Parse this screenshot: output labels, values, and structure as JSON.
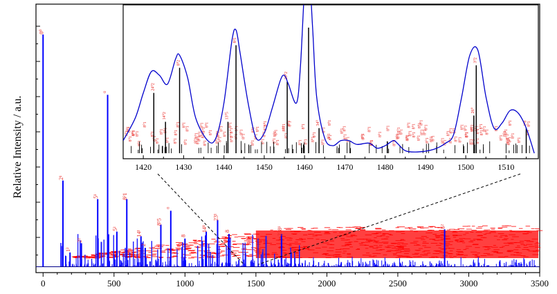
{
  "chart_data": [
    {
      "type": "bar",
      "name": "main-spectrum",
      "ylabel": "Relative Intensity / a.u.",
      "xlabel": "",
      "xlim": [
        -50,
        3500
      ],
      "ylim": [
        0,
        1.05
      ],
      "xticks": [
        0,
        500,
        1000,
        1500,
        2000,
        2500,
        3000,
        3500
      ],
      "experimental_color": "#0000ff",
      "assignment_color": "#ff0000",
      "stick_color": "#1a1aff",
      "peaks": [
        {
          "x": 0,
          "y": 1.0,
          "label": "0⁰"
        },
        {
          "x": 140,
          "y": 0.37,
          "label": "2¹"
        },
        {
          "x": 190,
          "y": 0.06,
          "label": "1²"
        },
        {
          "x": 270,
          "y": 0.1,
          "label": "2²"
        },
        {
          "x": 385,
          "y": 0.29,
          "label": "5¹"
        },
        {
          "x": 455,
          "y": 0.74,
          "label": "⁰"
        },
        {
          "x": 520,
          "y": 0.15,
          "label": "5²"
        },
        {
          "x": 590,
          "y": 0.29,
          "label": "8²1"
        },
        {
          "x": 690,
          "y": 0.13,
          "label": "14¹"
        },
        {
          "x": 720,
          "y": 0.08,
          "label": "2"
        },
        {
          "x": 830,
          "y": 0.18,
          "label": "8⁵5"
        },
        {
          "x": 900,
          "y": 0.24,
          "label": "⁰"
        },
        {
          "x": 1000,
          "y": 0.12,
          "label": "8"
        },
        {
          "x": 1150,
          "y": 0.15,
          "label": "14⁸"
        },
        {
          "x": 1230,
          "y": 0.2,
          "label": "23¹"
        },
        {
          "x": 1310,
          "y": 0.14,
          "label": "8"
        },
        {
          "x": 1680,
          "y": 0.14,
          "label": "238¹"
        },
        {
          "x": 2830,
          "y": 0.16,
          "label": "5²"
        }
      ]
    },
    {
      "type": "line",
      "name": "inset-zoom",
      "xlim": [
        1415,
        1518
      ],
      "xticks": [
        1420,
        1430,
        1440,
        1450,
        1460,
        1470,
        1480,
        1490,
        1500,
        1510
      ],
      "line_color": "#0000cc",
      "curve": {
        "x": [
          1415,
          1418,
          1420,
          1422,
          1424,
          1426,
          1428,
          1429,
          1431,
          1433,
          1436,
          1438,
          1440,
          1442,
          1443,
          1444,
          1446,
          1448,
          1450,
          1452,
          1454,
          1455,
          1456,
          1458,
          1459,
          1460,
          1461,
          1462,
          1463,
          1465,
          1467,
          1469,
          1471,
          1473,
          1476,
          1478,
          1480,
          1482,
          1483,
          1485,
          1488,
          1492,
          1495,
          1497,
          1499,
          1501,
          1503,
          1505,
          1507,
          1509,
          1511,
          1513,
          1515,
          1517
        ],
        "y": [
          0.1,
          0.28,
          0.48,
          0.65,
          0.62,
          0.55,
          0.75,
          0.78,
          0.6,
          0.28,
          0.1,
          0.12,
          0.4,
          0.9,
          0.98,
          0.8,
          0.4,
          0.12,
          0.16,
          0.36,
          0.58,
          0.62,
          0.55,
          0.4,
          0.7,
          1.3,
          1.5,
          1.0,
          0.45,
          0.12,
          0.06,
          0.1,
          0.1,
          0.07,
          0.08,
          0.04,
          0.06,
          0.1,
          0.08,
          0.02,
          0.01,
          0.03,
          0.08,
          0.15,
          0.45,
          0.78,
          0.82,
          0.45,
          0.2,
          0.24,
          0.34,
          0.32,
          0.2,
          0.0
        ]
      },
      "sticks": [
        {
          "x": 1422.6,
          "y": 0.48,
          "label": "24⁰2"
        },
        {
          "x": 1425.5,
          "y": 0.25,
          "label": "14⁰2"
        },
        {
          "x": 1429.0,
          "y": 0.68,
          "label": "8⁰2"
        },
        {
          "x": 1443.0,
          "y": 0.86,
          "label": "8³5"
        },
        {
          "x": 1441.0,
          "y": 0.25,
          "label": "13⁰5"
        },
        {
          "x": 1455.7,
          "y": 0.57,
          "label": "20⁰2"
        },
        {
          "x": 1461.0,
          "y": 1.0,
          "label": ""
        },
        {
          "x": 1463.6,
          "y": 0.2,
          "label": "34⁰"
        },
        {
          "x": 1502.6,
          "y": 0.7,
          "label": "3⁰2"
        },
        {
          "x": 1502.0,
          "y": 0.3,
          "label": "26⁰"
        },
        {
          "x": 1515.0,
          "y": 0.2,
          "label": "1³8"
        }
      ]
    }
  ]
}
